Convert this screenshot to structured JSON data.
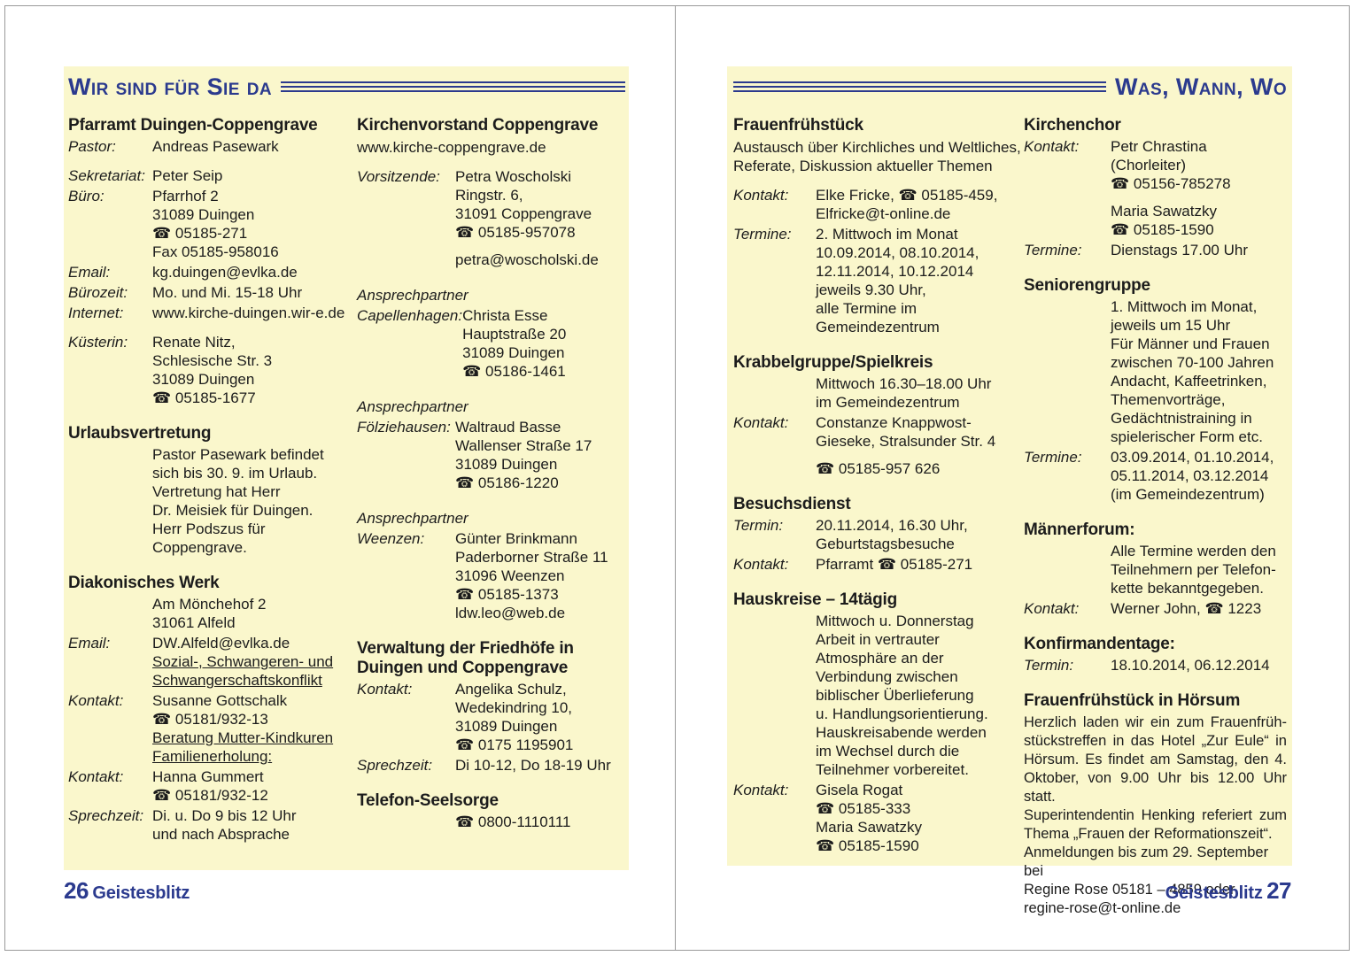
{
  "colors": {
    "accent": "#2b3a8e",
    "panel_background": "#faf7cc",
    "body_text": "#1c1c1c",
    "frame_border": "#9a9a9a"
  },
  "phone_icon": "☎",
  "page_left": {
    "header": "Wir sind für Sie da",
    "footer_number": "26",
    "footer_title": "Geistesblitz",
    "columns": [
      {
        "sections": [
          {
            "title": "Pfarramt Duingen-Coppengrave",
            "groups": [
              {
                "label": "Pastor:",
                "lines": [
                  "Andreas Pasewark"
                ]
              },
              {
                "label": "Sekretariat:",
                "gap": true,
                "lines": [
                  "Peter Seip"
                ]
              },
              {
                "label": "Büro:",
                "lines": [
                  "Pfarrhof 2",
                  "31089 Duingen",
                  "☎ 05185-271",
                  "Fax 05185-958016"
                ]
              },
              {
                "label": "Email:",
                "lines": [
                  "kg.duingen@evlka.de"
                ]
              },
              {
                "label": "Bürozeit:",
                "lines": [
                  "Mo. und Mi. 15-18 Uhr"
                ]
              },
              {
                "label": "Internet:",
                "lines": [
                  "www.kirche-duingen.wir-e.de"
                ]
              },
              {
                "label": "Küsterin:",
                "gap": true,
                "lines": [
                  "Renate Nitz,",
                  "Schlesische Str. 3",
                  "31089 Duingen",
                  "☎ 05185-1677"
                ]
              }
            ]
          },
          {
            "title": "Urlaubsvertretung",
            "groups": [
              {
                "label": "",
                "lines": [
                  "Pastor Pasewark befindet",
                  "sich bis 30. 9. im Urlaub.",
                  "Vertretung hat Herr",
                  "Dr. Meisiek für Duingen.",
                  "Herr Podszus für",
                  "Coppengrave."
                ]
              }
            ]
          },
          {
            "title": "Diakonisches Werk",
            "groups": [
              {
                "label": "",
                "lines": [
                  "Am Mönchehof 2",
                  "31061 Alfeld"
                ]
              },
              {
                "label": "Email:",
                "lines": [
                  "DW.Alfeld@evlka.de",
                  {
                    "t": "Sozial-, Schwangeren- und",
                    "u": true
                  },
                  {
                    "t": "Schwangerschaftskonflikt",
                    "u": true
                  }
                ]
              },
              {
                "label": "Kontakt:",
                "lines": [
                  "Susanne Gottschalk",
                  "☎ 05181/932-13",
                  {
                    "t": "Beratung Mutter-Kindkuren",
                    "u": true
                  },
                  {
                    "t": "Familienerholung:",
                    "u": true
                  }
                ]
              },
              {
                "label": "Kontakt:",
                "lines": [
                  "Hanna Gummert",
                  "☎ 05181/932-12"
                ]
              },
              {
                "label": "Sprechzeit:",
                "lines": [
                  "Di. u. Do 9 bis 12 Uhr",
                  "und nach Absprache"
                ]
              }
            ]
          }
        ]
      },
      {
        "sections": [
          {
            "title": "Kirchenvorstand Coppengrave",
            "subtitle": "www.kirche-coppengrave.de",
            "groups": [
              {
                "label": "Vorsitzende:",
                "gap": true,
                "lines": [
                  "Petra Woscholski",
                  "Ringstr. 6,",
                  "31091 Coppengrave",
                  "☎ 05185-957078",
                  {
                    "t": "petra@woscholski.de",
                    "gap": true
                  }
                ]
              }
            ]
          },
          {
            "lead": "Ansprechpartner",
            "groups": [
              {
                "label": "Capellenhagen:",
                "lines": [
                  "Christa Esse",
                  "Hauptstraße 20",
                  "31089 Duingen",
                  "☎ 05186-1461"
                ]
              }
            ]
          },
          {
            "lead": "Ansprechpartner",
            "groups": [
              {
                "label": "Fölziehausen:",
                "lines": [
                  "Waltraud Basse",
                  "Wallenser Straße 17",
                  "31089 Duingen",
                  "☎ 05186-1220"
                ]
              }
            ]
          },
          {
            "lead": "Ansprechpartner",
            "groups": [
              {
                "label": "Weenzen:",
                "lines": [
                  "Günter Brinkmann",
                  "Paderborner Straße 11",
                  "31096 Weenzen",
                  "☎ 05185-1373",
                  "ldw.leo@web.de"
                ]
              }
            ]
          },
          {
            "title": "Verwaltung der Friedhöfe in Duingen und Coppengrave",
            "groups": [
              {
                "label": "Kontakt:",
                "lines": [
                  "Angelika Schulz,",
                  "Wedekindring 10,",
                  "31089 Duingen",
                  "☎ 0175 1195901"
                ]
              },
              {
                "label": "Sprechzeit:",
                "lines": [
                  "Di 10-12, Do 18-19 Uhr"
                ]
              }
            ]
          },
          {
            "title": "Telefon-Seelsorge",
            "groups": [
              {
                "label": "",
                "lines": [
                  "☎ 0800-1110111"
                ]
              }
            ]
          }
        ]
      }
    ]
  },
  "page_right": {
    "header": "Was, Wann, Wo",
    "footer_number": "27",
    "footer_title": "Geistesblitz",
    "columns": [
      {
        "sections": [
          {
            "title": "Frauenfrühstück",
            "intro": [
              "Austausch über Kirchliches und Weltliches,",
              "Referate, Diskussion aktueller Themen"
            ],
            "groups": [
              {
                "label": "Kontakt:",
                "gap": true,
                "lines": [
                  "Elke Fricke, ☎ 05185-459,",
                  "Elfricke@t-online.de"
                ]
              },
              {
                "label": "Termine:",
                "lines": [
                  "2. Mittwoch im Monat",
                  "10.09.2014, 08.10.2014,",
                  "12.11.2014, 10.12.2014",
                  "jeweils 9.30 Uhr,",
                  "alle Termine im",
                  "Gemeindezentrum"
                ]
              }
            ]
          },
          {
            "title": "Krabbelgruppe/Spielkreis",
            "groups": [
              {
                "label": "",
                "lines": [
                  "Mittwoch 16.30–18.00 Uhr",
                  "im Gemeindezentrum"
                ]
              },
              {
                "label": "Kontakt:",
                "lines": [
                  "Constanze Knappwost-",
                  "Gieseke, Stralsunder Str. 4",
                  {
                    "t": "☎ 05185-957 626",
                    "gap": true
                  }
                ]
              }
            ]
          },
          {
            "title": "Besuchsdienst",
            "groups": [
              {
                "label": "Termin:",
                "lines": [
                  "20.11.2014, 16.30 Uhr,",
                  "Geburtstagsbesuche"
                ]
              },
              {
                "label": "Kontakt:",
                "lines": [
                  "Pfarramt ☎ 05185-271"
                ]
              }
            ]
          },
          {
            "title": "Hauskreise – 14tägig",
            "groups": [
              {
                "label": "",
                "lines": [
                  "Mittwoch u. Donnerstag",
                  "Arbeit in vertrauter",
                  "Atmosphäre an der",
                  "Verbindung zwischen",
                  "biblischer Überlieferung",
                  "u. Handlungsorientierung.",
                  "Hauskreisabende werden",
                  "im Wechsel durch die",
                  "Teilnehmer vorbereitet."
                ]
              },
              {
                "label": "Kontakt:",
                "lines": [
                  "Gisela Rogat",
                  "☎ 05185-333",
                  "Maria Sawatzky",
                  "☎ 05185-1590"
                ]
              }
            ]
          }
        ]
      },
      {
        "sections": [
          {
            "title": "Kirchenchor",
            "groups": [
              {
                "label": "Kontakt:",
                "lines": [
                  "Petr Chrastina",
                  "(Chorleiter)",
                  "☎ 05156-785278",
                  {
                    "t": "Maria Sawatzky",
                    "gap": true
                  },
                  "☎ 05185-1590"
                ]
              },
              {
                "label": "Termine:",
                "lines": [
                  "Dienstags 17.00 Uhr"
                ]
              }
            ]
          },
          {
            "title": "Seniorengruppe",
            "groups": [
              {
                "label": "",
                "lines": [
                  "1. Mittwoch im Monat,",
                  "jeweils um 15 Uhr",
                  "Für Männer und Frauen",
                  "zwischen 70-100 Jahren",
                  "Andacht, Kaffeetrinken,",
                  "Themenvorträge,",
                  "Gedächtnistraining in",
                  "spielerischer Form etc."
                ]
              },
              {
                "label": "Termine:",
                "lines": [
                  "03.09.2014, 01.10.2014,",
                  "05.11.2014, 03.12.2014",
                  "(im Gemeindezentrum)"
                ]
              }
            ]
          },
          {
            "title": "Männerforum:",
            "groups": [
              {
                "label": "",
                "lines": [
                  "Alle Termine werden den",
                  "Teilnehmern per Telefon-",
                  "kette bekanntgegeben."
                ]
              },
              {
                "label": "Kontakt:",
                "lines": [
                  "Werner John, ☎ 1223"
                ]
              }
            ]
          },
          {
            "title": "Konfirmandentage:",
            "groups": [
              {
                "label": "Termin:",
                "lines": [
                  "18.10.2014, 06.12.2014"
                ]
              }
            ]
          },
          {
            "title": "Frauenfrühstück in Hörsum",
            "para": [
              {
                "t": "Herzlich laden wir ein zum Frauenfrüh-",
                "j": true
              },
              {
                "t": "stückstreffen in das Hotel „Zur Eule“ in",
                "j": true
              },
              {
                "t": "Hörsum. Es findet am Samstag, den 4.",
                "j": true
              },
              {
                "t": "Oktober, von 9.00 Uhr bis 12.00 Uhr statt.",
                "j": true
              },
              {
                "t": "Superintendentin Henking referiert zum",
                "j": true
              },
              {
                "t": "Thema „Frauen der Reformationszeit“."
              },
              {
                "t": "Anmeldungen bis zum 29. September bei"
              },
              {
                "t": "Regine Rose 05181 – 4859 oder"
              },
              {
                "t": "regine-rose@t-online.de"
              }
            ]
          }
        ]
      }
    ]
  }
}
